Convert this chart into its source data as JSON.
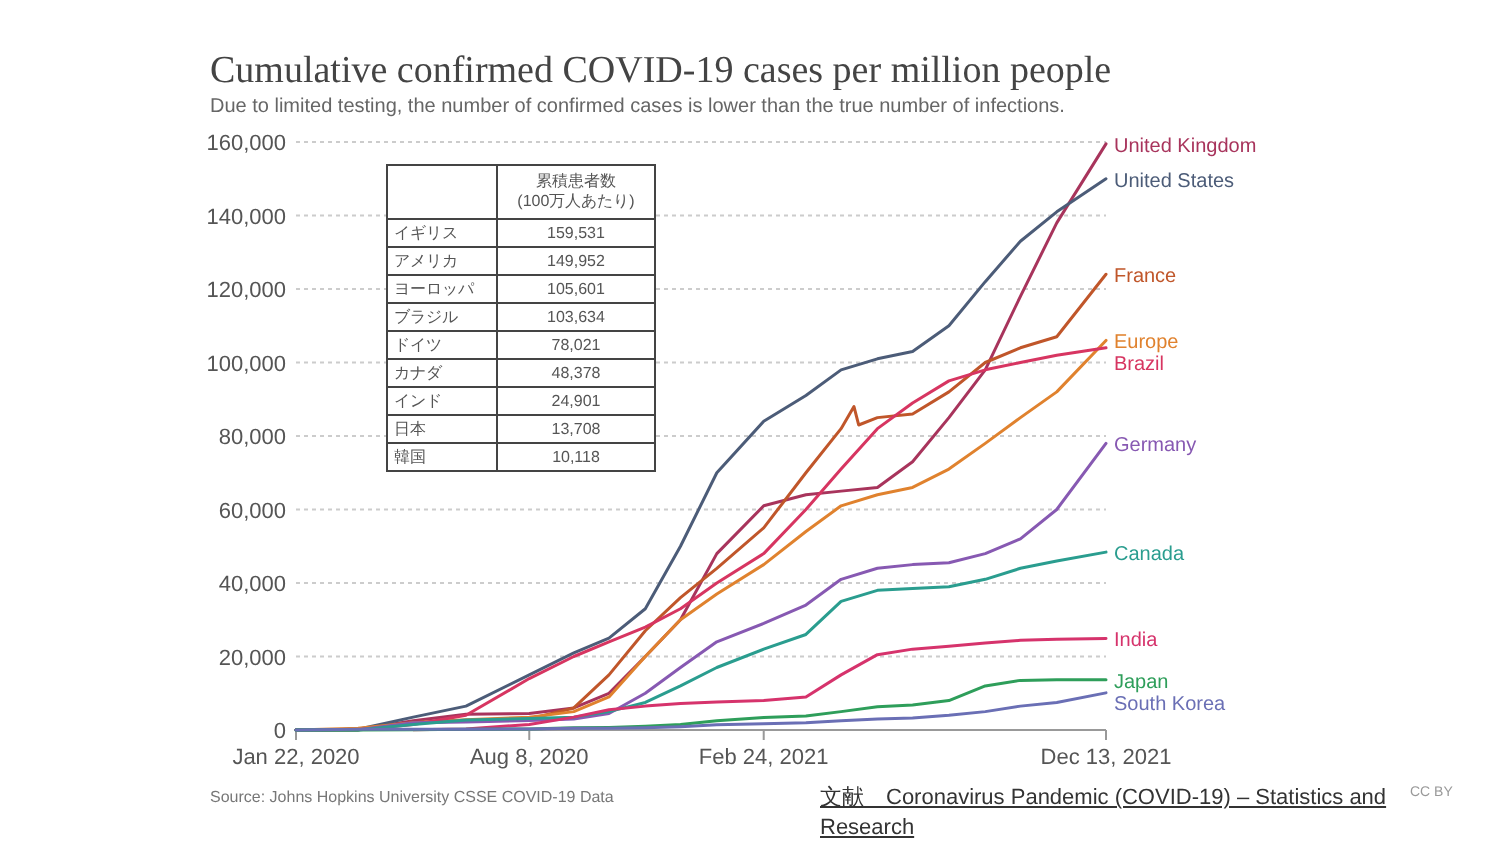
{
  "chart_data": {
    "type": "line",
    "title": "Cumulative confirmed COVID-19 cases per million people",
    "subtitle": "Due to limited testing, the number of confirmed cases is lower than the true number of infections.",
    "x": [
      "2020-01-22",
      "2020-03-15",
      "2020-05-01",
      "2020-06-15",
      "2020-08-08",
      "2020-09-15",
      "2020-10-15",
      "2020-11-15",
      "2020-12-15",
      "2021-01-15",
      "2021-02-24",
      "2021-04-01",
      "2021-05-01",
      "2021-06-01",
      "2021-07-01",
      "2021-08-01",
      "2021-09-01",
      "2021-10-01",
      "2021-11-01",
      "2021-12-13"
    ],
    "series": [
      {
        "name": "United Kingdom",
        "color": "#a8345c",
        "values": [
          0,
          100,
          2500,
          4300,
          4500,
          6000,
          10000,
          20000,
          30000,
          48000,
          61000,
          64000,
          65000,
          66000,
          73000,
          85000,
          98000,
          118000,
          138000,
          159500
        ]
      },
      {
        "name": "United States",
        "color": "#4c5c78",
        "values": [
          0,
          200,
          3500,
          6500,
          15000,
          21000,
          25000,
          33000,
          50000,
          70000,
          84000,
          91000,
          98000,
          101000,
          103000,
          110000,
          122000,
          133000,
          141000,
          150000
        ]
      },
      {
        "name": "France",
        "color": "#c0562a",
        "x": [
          "2020-01-22",
          "2020-03-15",
          "2020-05-01",
          "2020-06-15",
          "2020-08-08",
          "2020-09-15",
          "2020-10-15",
          "2020-11-15",
          "2020-12-15",
          "2021-01-15",
          "2021-02-24",
          "2021-04-01",
          "2021-05-01",
          "2021-05-12",
          "2021-05-16",
          "2021-06-01",
          "2021-07-01",
          "2021-08-01",
          "2021-09-01",
          "2021-10-01",
          "2021-11-01",
          "2021-12-13"
        ],
        "values": [
          0,
          100,
          2000,
          2500,
          3000,
          6000,
          15000,
          27000,
          36000,
          44000,
          55000,
          70000,
          82000,
          88000,
          83000,
          85000,
          86000,
          92000,
          100000,
          104000,
          107000,
          124000
        ]
      },
      {
        "name": "Europe",
        "color": "#e0822e",
        "values": [
          0,
          500,
          2000,
          2800,
          3500,
          5000,
          9000,
          20000,
          30000,
          37000,
          45000,
          54000,
          61000,
          64000,
          66000,
          71000,
          78000,
          85000,
          92000,
          106000
        ]
      },
      {
        "name": "Brazil",
        "color": "#d73561",
        "values": [
          0,
          100,
          1500,
          4000,
          14000,
          20000,
          24000,
          28000,
          33000,
          40000,
          48000,
          60000,
          71000,
          82000,
          89000,
          95000,
          98000,
          100000,
          102000,
          104000
        ]
      },
      {
        "name": "Germany",
        "color": "#8759b2",
        "values": [
          0,
          100,
          2000,
          2200,
          2600,
          3000,
          4500,
          10000,
          17000,
          24000,
          29000,
          34000,
          41000,
          44000,
          45000,
          45500,
          48000,
          52000,
          60000,
          78000
        ]
      },
      {
        "name": "Canada",
        "color": "#2a9d8f",
        "values": [
          0,
          0,
          1500,
          2700,
          3100,
          3500,
          5000,
          7500,
          12000,
          17000,
          22000,
          26000,
          35000,
          38000,
          38500,
          39000,
          41000,
          44000,
          46000,
          48400
        ]
      },
      {
        "name": "India",
        "color": "#d6336c",
        "values": [
          null,
          null,
          100,
          300,
          1500,
          3500,
          5500,
          6500,
          7200,
          7600,
          8000,
          9000,
          15000,
          20500,
          22000,
          22800,
          23700,
          24400,
          24700,
          24900
        ]
      },
      {
        "name": "Japan",
        "color": "#2e9e5a",
        "values": [
          0,
          0,
          100,
          200,
          300,
          600,
          700,
          1000,
          1500,
          2500,
          3400,
          3800,
          5000,
          6300,
          6800,
          8000,
          12000,
          13500,
          13700,
          13700
        ]
      },
      {
        "name": "South Korea",
        "color": "#6a6fb5",
        "values": [
          0,
          200,
          200,
          200,
          300,
          500,
          500,
          600,
          900,
          1400,
          1700,
          2000,
          2500,
          3000,
          3300,
          4000,
          5000,
          6500,
          7500,
          10100
        ]
      }
    ],
    "xlim": [
      "2020-01-22",
      "2021-12-13"
    ],
    "xticks": [
      {
        "value": "2020-01-22",
        "label": "Jan 22, 2020"
      },
      {
        "value": "2020-08-08",
        "label": "Aug 8, 2020"
      },
      {
        "value": "2021-02-24",
        "label": "Feb 24, 2021"
      },
      {
        "value": "2021-12-13",
        "label": "Dec 13, 2021"
      }
    ],
    "ylim": [
      0,
      160000
    ],
    "yticks": [
      0,
      {
        "value": 20000,
        "label": "20,000"
      },
      {
        "value": 40000,
        "label": "40,000"
      },
      {
        "value": 60000,
        "label": "60,000"
      },
      {
        "value": 80000,
        "label": "80,000"
      },
      {
        "value": 100000,
        "label": "100,000"
      },
      {
        "value": 120000,
        "label": "120,000"
      },
      {
        "value": 140000,
        "label": "140,000"
      },
      {
        "value": 160000,
        "label": "160,000"
      }
    ],
    "grid": "y",
    "legend": false,
    "line_style": "solid",
    "marker": "none",
    "annotations": [
      "Source: Johns Hopkins University CSSE COVID-19 Data",
      "文献　Coronavirus Pandemic (COVID-19) – Statistics and Research",
      "CC BY",
      "累積患者数 (100万人あたり)",
      "イギリス",
      "159,531",
      "アメリカ",
      "149,952",
      "ヨーロッパ",
      "105,601",
      "ブラジル",
      "103,634",
      "ドイツ",
      "78,021",
      "カナダ",
      "48,378",
      "インド",
      "24,901",
      "日本",
      "13,708",
      "韓国",
      "10,118"
    ]
  }
}
